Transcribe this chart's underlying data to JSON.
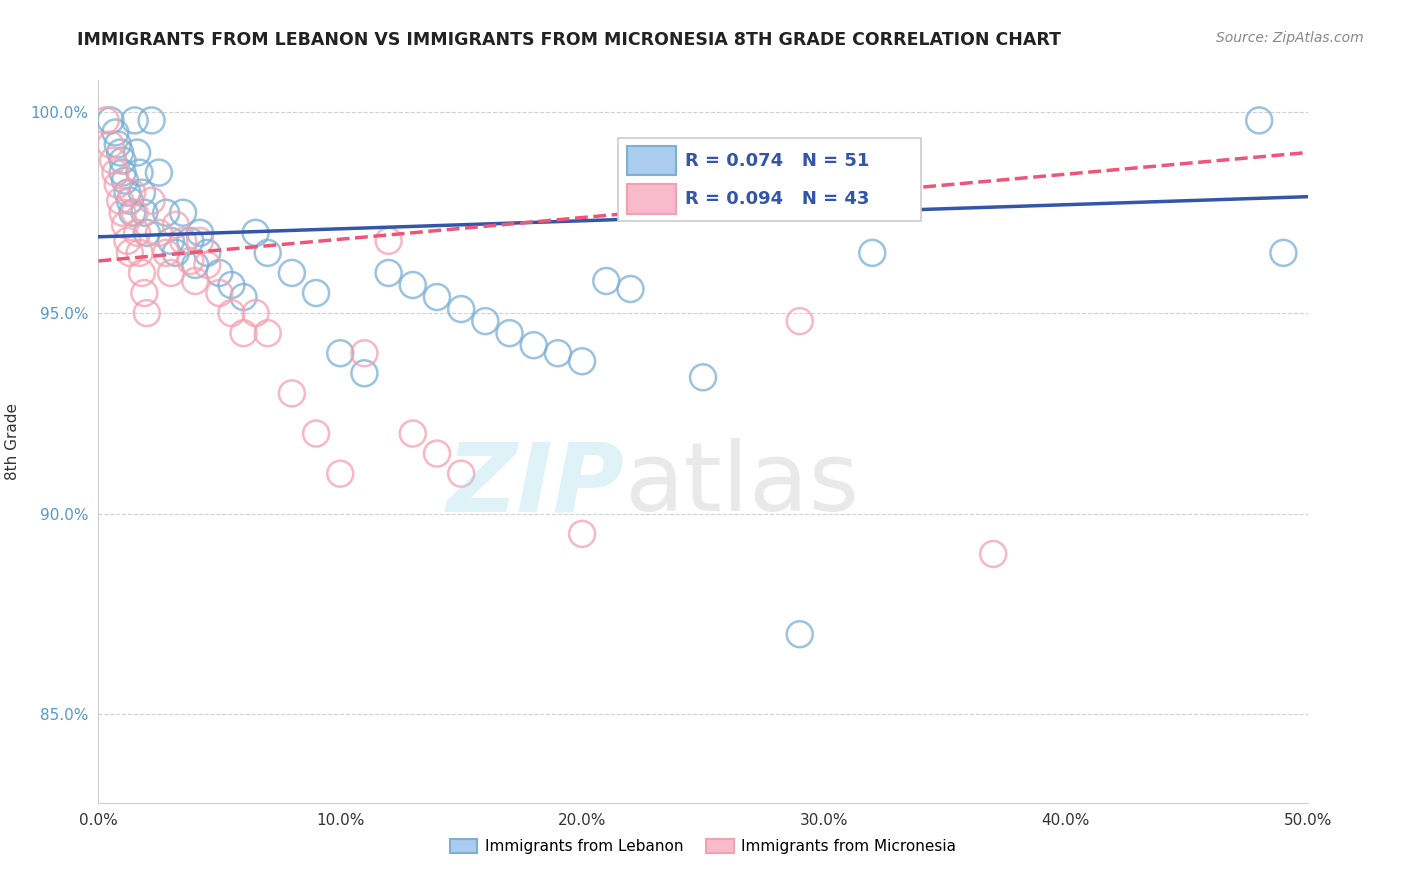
{
  "title": "IMMIGRANTS FROM LEBANON VS IMMIGRANTS FROM MICRONESIA 8TH GRADE CORRELATION CHART",
  "source": "Source: ZipAtlas.com",
  "ylabel": "8th Grade",
  "legend_label1": "Immigrants from Lebanon",
  "legend_label2": "Immigrants from Micronesia",
  "r1": 0.074,
  "n1": 51,
  "r2": 0.094,
  "n2": 43,
  "xlim": [
    0.0,
    0.5
  ],
  "ylim": [
    0.828,
    1.008
  ],
  "xtick_labels": [
    "0.0%",
    "10.0%",
    "20.0%",
    "30.0%",
    "40.0%",
    "50.0%"
  ],
  "xtick_vals": [
    0.0,
    0.1,
    0.2,
    0.3,
    0.4,
    0.5
  ],
  "ytick_labels": [
    "85.0%",
    "90.0%",
    "95.0%",
    "100.0%"
  ],
  "ytick_vals": [
    0.85,
    0.9,
    0.95,
    1.0
  ],
  "color1": "#7BAFD4",
  "color2": "#F4A0B0",
  "trendline1_color": "#3355AA",
  "trendline2_color": "#EE5577",
  "lebanon_x": [
    0.005,
    0.007,
    0.008,
    0.009,
    0.01,
    0.01,
    0.011,
    0.012,
    0.013,
    0.014,
    0.015,
    0.016,
    0.017,
    0.018,
    0.019,
    0.02,
    0.022,
    0.025,
    0.028,
    0.03,
    0.032,
    0.035,
    0.038,
    0.04,
    0.042,
    0.045,
    0.05,
    0.055,
    0.06,
    0.065,
    0.07,
    0.08,
    0.09,
    0.1,
    0.11,
    0.12,
    0.13,
    0.14,
    0.15,
    0.16,
    0.17,
    0.18,
    0.19,
    0.2,
    0.21,
    0.22,
    0.25,
    0.29,
    0.32,
    0.48,
    0.49
  ],
  "lebanon_y": [
    0.998,
    0.995,
    0.992,
    0.99,
    0.988,
    0.985,
    0.983,
    0.98,
    0.978,
    0.975,
    0.998,
    0.99,
    0.985,
    0.98,
    0.975,
    0.97,
    0.998,
    0.985,
    0.975,
    0.968,
    0.965,
    0.975,
    0.968,
    0.962,
    0.97,
    0.965,
    0.96,
    0.957,
    0.954,
    0.97,
    0.965,
    0.96,
    0.955,
    0.94,
    0.935,
    0.96,
    0.957,
    0.954,
    0.951,
    0.948,
    0.945,
    0.942,
    0.94,
    0.938,
    0.958,
    0.956,
    0.934,
    0.87,
    0.965,
    0.998,
    0.965
  ],
  "micronesia_x": [
    0.003,
    0.005,
    0.006,
    0.007,
    0.008,
    0.009,
    0.01,
    0.011,
    0.012,
    0.013,
    0.014,
    0.015,
    0.016,
    0.017,
    0.018,
    0.019,
    0.02,
    0.022,
    0.025,
    0.028,
    0.03,
    0.032,
    0.035,
    0.038,
    0.04,
    0.042,
    0.045,
    0.05,
    0.055,
    0.06,
    0.065,
    0.07,
    0.08,
    0.09,
    0.1,
    0.11,
    0.12,
    0.13,
    0.14,
    0.15,
    0.2,
    0.29,
    0.37
  ],
  "micronesia_y": [
    0.998,
    0.992,
    0.988,
    0.985,
    0.982,
    0.978,
    0.975,
    0.972,
    0.968,
    0.965,
    0.98,
    0.975,
    0.97,
    0.965,
    0.96,
    0.955,
    0.95,
    0.978,
    0.97,
    0.965,
    0.96,
    0.972,
    0.968,
    0.963,
    0.958,
    0.968,
    0.962,
    0.955,
    0.95,
    0.945,
    0.95,
    0.945,
    0.93,
    0.92,
    0.91,
    0.94,
    0.968,
    0.92,
    0.915,
    0.91,
    0.895,
    0.948,
    0.89
  ],
  "trendline1_x0": 0.0,
  "trendline1_y0": 0.969,
  "trendline1_x1": 0.5,
  "trendline1_y1": 0.979,
  "trendline2_x0": 0.0,
  "trendline2_y0": 0.963,
  "trendline2_x1": 0.5,
  "trendline2_y1": 0.99
}
